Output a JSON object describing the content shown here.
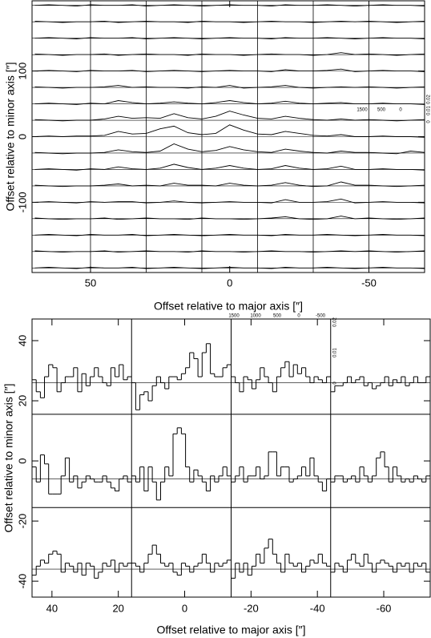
{
  "chart_data": [
    {
      "type": "line",
      "xlabel": "Offset relative to major axis [″]",
      "ylabel": "Offset relative to minor axis [″]",
      "xlim": [
        71,
        -70
      ],
      "ylim": [
        -207,
        207
      ],
      "xticks": [
        50,
        0,
        -50
      ],
      "yticks": [
        100,
        0,
        -100
      ],
      "column_lines": [
        50,
        30,
        10,
        -10,
        -30,
        -50
      ],
      "velocity_ticks": [
        1500,
        500,
        0
      ],
      "amplitude_ticks": [
        0.02,
        0.01,
        0
      ],
      "color": "#000000",
      "x": [
        70,
        65,
        60,
        55,
        50,
        45,
        40,
        35,
        30,
        25,
        20,
        15,
        10,
        5,
        0,
        -5,
        -10,
        -15,
        -20,
        -25,
        -30,
        -35,
        -40,
        -45,
        -50,
        -55,
        -60,
        -65,
        -70
      ],
      "rows": [
        200,
        175,
        150,
        125,
        100,
        75,
        50,
        25,
        0,
        -25,
        -50,
        -75,
        -100,
        -125,
        -150,
        -175,
        -200
      ],
      "spectra": [
        [
          0,
          1,
          0,
          -1,
          1,
          0,
          0,
          1,
          -1,
          0,
          1,
          0,
          -1,
          0,
          1,
          0,
          0,
          -1,
          1,
          0,
          0,
          1,
          0,
          -1,
          0,
          1,
          0,
          0,
          -1
        ],
        [
          1,
          0,
          -1,
          0,
          0,
          1,
          -1,
          0,
          1,
          0,
          0,
          -1,
          1,
          0,
          0,
          -1,
          0,
          1,
          0,
          0,
          -1,
          0,
          1,
          0,
          1,
          0,
          -1,
          0,
          1
        ],
        [
          0,
          1,
          0,
          -1,
          1,
          0,
          0,
          1,
          -1,
          0,
          1,
          0,
          -1,
          0,
          1,
          0,
          0,
          -1,
          1,
          0,
          0,
          1,
          0,
          -1,
          0,
          1,
          0,
          0,
          -1
        ],
        [
          1,
          0,
          -1,
          0,
          0,
          1,
          -1,
          0,
          1,
          0,
          0,
          -1,
          1,
          0,
          0,
          -1,
          0,
          1,
          0,
          0,
          -1,
          0,
          3,
          0,
          1,
          0,
          -1,
          0,
          1
        ],
        [
          0,
          1,
          0,
          -1,
          1,
          0,
          0,
          1,
          -1,
          0,
          1,
          0,
          -1,
          0,
          1,
          0,
          0,
          -1,
          2,
          0,
          0,
          1,
          3,
          -1,
          0,
          1,
          0,
          0,
          -1
        ],
        [
          1,
          0,
          -1,
          0,
          0,
          1,
          3,
          0,
          1,
          0,
          0,
          -1,
          1,
          0,
          3,
          -1,
          0,
          1,
          3,
          0,
          -1,
          0,
          1,
          0,
          1,
          0,
          -1,
          0,
          1
        ],
        [
          0,
          1,
          0,
          -1,
          1,
          0,
          5,
          2,
          0,
          1,
          3,
          1,
          0,
          2,
          5,
          2,
          0,
          1,
          4,
          1,
          0,
          1,
          2,
          0,
          0,
          1,
          0,
          0,
          -1
        ],
        [
          1,
          0,
          -1,
          0,
          0,
          2,
          6,
          3,
          4,
          3,
          10,
          4,
          2,
          6,
          14,
          8,
          3,
          2,
          6,
          3,
          1,
          0,
          2,
          0,
          1,
          0,
          -1,
          0,
          1
        ],
        [
          0,
          1,
          0,
          1,
          1,
          2,
          8,
          4,
          5,
          12,
          16,
          6,
          3,
          5,
          18,
          10,
          4,
          3,
          8,
          5,
          2,
          1,
          3,
          0,
          0,
          1,
          0,
          0,
          -1
        ],
        [
          1,
          0,
          -1,
          0,
          0,
          1,
          5,
          2,
          1,
          3,
          14,
          6,
          2,
          4,
          10,
          5,
          2,
          1,
          6,
          3,
          1,
          0,
          3,
          1,
          1,
          0,
          -1,
          3,
          1
        ],
        [
          0,
          1,
          0,
          -1,
          1,
          0,
          4,
          1,
          0,
          2,
          8,
          3,
          0,
          2,
          6,
          2,
          0,
          1,
          6,
          2,
          0,
          1,
          5,
          0,
          0,
          1,
          0,
          0,
          -1
        ],
        [
          1,
          0,
          -1,
          0,
          0,
          1,
          3,
          0,
          1,
          0,
          4,
          1,
          1,
          0,
          4,
          1,
          0,
          1,
          5,
          1,
          -1,
          0,
          6,
          1,
          1,
          0,
          -1,
          0,
          1
        ],
        [
          0,
          1,
          0,
          -1,
          1,
          0,
          1,
          1,
          -1,
          0,
          2,
          0,
          -1,
          0,
          1,
          0,
          0,
          -1,
          4,
          0,
          0,
          1,
          5,
          -1,
          0,
          1,
          0,
          0,
          -1
        ],
        [
          1,
          0,
          -1,
          0,
          0,
          1,
          -1,
          0,
          1,
          0,
          0,
          -1,
          1,
          0,
          0,
          -1,
          0,
          1,
          3,
          0,
          -1,
          0,
          4,
          0,
          1,
          0,
          -1,
          0,
          1
        ],
        [
          0,
          1,
          0,
          -1,
          1,
          0,
          0,
          1,
          -1,
          0,
          1,
          0,
          -1,
          0,
          1,
          0,
          0,
          -1,
          1,
          0,
          0,
          1,
          0,
          -1,
          0,
          1,
          0,
          0,
          -1
        ],
        [
          1,
          0,
          -1,
          0,
          0,
          1,
          -1,
          0,
          1,
          0,
          0,
          -1,
          1,
          0,
          0,
          -1,
          0,
          1,
          0,
          0,
          -1,
          0,
          1,
          0,
          1,
          0,
          -1,
          0,
          1
        ],
        [
          0,
          1,
          0,
          -1,
          1,
          0,
          0,
          1,
          -1,
          0,
          1,
          0,
          -1,
          0,
          1,
          0,
          0,
          -1,
          1,
          0,
          0,
          1,
          0,
          -1,
          0,
          1,
          0,
          0,
          -1
        ]
      ]
    },
    {
      "type": "step",
      "xlabel": "Offset relative to major axis [″]",
      "ylabel": "Offset relative to minor axis [″]",
      "xlim": [
        46,
        -74
      ],
      "ylim": [
        -45.3,
        47.2
      ],
      "xticks": [
        40,
        20,
        0,
        -20,
        -40,
        -60
      ],
      "yticks": [
        40,
        20,
        0,
        -20,
        -40
      ],
      "panel_edges_x": [
        16,
        -14,
        -44
      ],
      "panel_edges_y": [
        15.5,
        -15.5
      ],
      "column_starts": [
        46,
        16,
        -14,
        -44
      ],
      "bin_width": 1.25,
      "row_baselines": [
        26,
        -6,
        -36
      ],
      "velocity_ticks": [
        1500,
        1000,
        500,
        0,
        -500
      ],
      "amplitude_ticks": [
        0.02,
        0.01,
        0
      ],
      "color": "#000000",
      "spectra": [
        [
          [
            1,
            -3,
            -5,
            2,
            6,
            5,
            -3,
            0,
            2,
            2,
            5,
            -3,
            3,
            -1,
            2,
            5,
            2,
            0,
            -1,
            5,
            2,
            6,
            1,
            2
          ],
          [
            0,
            -9,
            -4,
            -3,
            -6,
            -1,
            2,
            0,
            -2,
            2,
            2,
            1,
            3,
            5,
            10,
            8,
            2,
            10,
            13,
            3,
            2,
            2,
            5,
            6
          ],
          [
            2,
            0,
            -3,
            2,
            1,
            -2,
            1,
            5,
            2,
            0,
            -3,
            2,
            5,
            7,
            2,
            6,
            3,
            5,
            2,
            0,
            2,
            1,
            0,
            2
          ],
          [
            -3,
            -1,
            -1,
            0,
            2,
            0,
            1,
            2,
            -1,
            0,
            -2,
            -1,
            0,
            2,
            -1,
            1,
            0,
            2,
            -1,
            0,
            2,
            0,
            0,
            2
          ]
        ],
        [
          [
            4,
            -1,
            8,
            5,
            -5,
            -5,
            -5,
            1,
            7,
            -1,
            1,
            -3,
            -1,
            1,
            0,
            -1,
            -1,
            1,
            -1,
            -3,
            -4,
            0,
            1,
            -1
          ],
          [
            1,
            -1,
            4,
            -4,
            4,
            -1,
            -7,
            -1,
            4,
            1,
            15,
            17,
            15,
            4,
            -1,
            3,
            1,
            -1,
            -4,
            1,
            -1,
            1,
            4,
            1
          ],
          [
            -1,
            1,
            4,
            -1,
            1,
            1,
            4,
            0,
            1,
            9,
            9,
            1,
            4,
            4,
            -1,
            0,
            1,
            4,
            1,
            7,
            1,
            -1,
            -4,
            0
          ],
          [
            -1,
            1,
            1,
            -1,
            0,
            1,
            -1,
            4,
            1,
            -1,
            1,
            7,
            9,
            4,
            -1,
            4,
            1,
            -1,
            0,
            -1,
            1,
            0,
            -1,
            1
          ]
        ],
        [
          [
            -2,
            1,
            3,
            2,
            5,
            6,
            5,
            -1,
            2,
            1,
            -1,
            2,
            -2,
            2,
            1,
            -3,
            -1,
            2,
            1,
            3,
            -1,
            2,
            1,
            2
          ],
          [
            2,
            1,
            -1,
            2,
            5,
            8,
            5,
            2,
            1,
            2,
            -1,
            -2,
            2,
            1,
            -1,
            1,
            2,
            5,
            2,
            -1,
            2,
            1,
            2,
            3
          ],
          [
            -3,
            2,
            -1,
            2,
            -2,
            1,
            5,
            2,
            7,
            10,
            5,
            2,
            -1,
            5,
            2,
            1,
            2,
            -1,
            1,
            3,
            2,
            5,
            2,
            1
          ],
          [
            -1,
            2,
            1,
            -1,
            3,
            5,
            2,
            1,
            5,
            2,
            -1,
            2,
            3,
            2,
            1,
            -1,
            2,
            1,
            2,
            -1,
            2,
            1,
            2,
            -1
          ]
        ]
      ]
    }
  ]
}
